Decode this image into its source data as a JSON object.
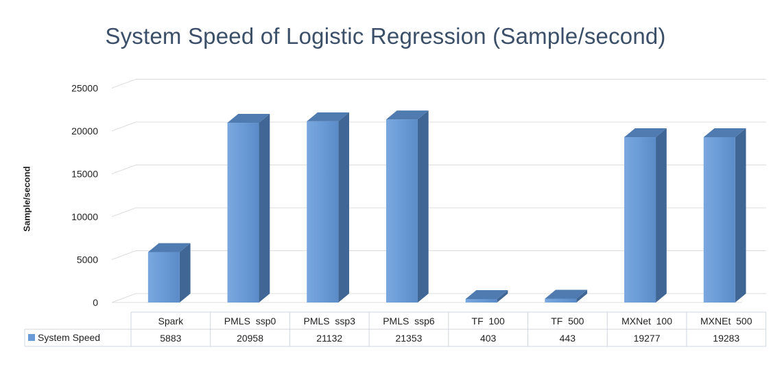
{
  "chart_data": {
    "type": "bar",
    "title": "System Speed of Logistic Regression (Sample/second)",
    "ylabel": "Sample/second",
    "xlabel": "",
    "ylim": [
      0,
      25000
    ],
    "yticks": [
      0,
      5000,
      10000,
      15000,
      20000,
      25000
    ],
    "grid": true,
    "legend": "data-table-left",
    "categories": [
      "Spark",
      "PMLS  ssp0",
      "PMLS  ssp3",
      "PMLS  ssp6",
      "TF  100",
      "TF  500",
      "MXNet  100",
      "MXNEt  500"
    ],
    "series": [
      {
        "name": "System Speed",
        "values": [
          5883,
          20958,
          21132,
          21353,
          403,
          443,
          19277,
          19283
        ],
        "value_labels": [
          "5883",
          "20958",
          "21132",
          "21353",
          "403",
          "443",
          "19277",
          "19283"
        ],
        "color": "#6a9bd6"
      }
    ]
  }
}
